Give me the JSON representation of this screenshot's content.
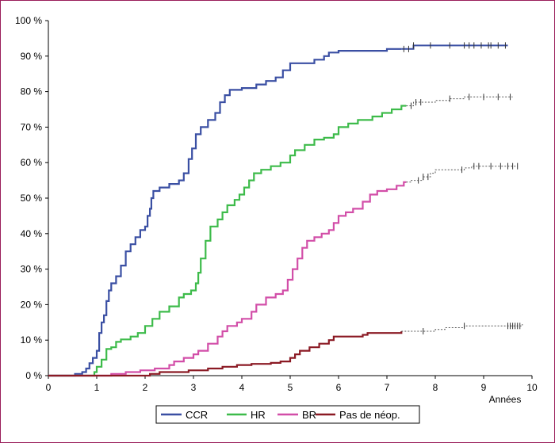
{
  "chart_data": {
    "type": "line",
    "title": "",
    "xlabel": "Années",
    "ylabel": "",
    "xlim": [
      0,
      10
    ],
    "ylim": [
      0,
      100
    ],
    "x_ticks": [
      0,
      1,
      2,
      3,
      4,
      5,
      6,
      7,
      8,
      9,
      10
    ],
    "y_ticks": [
      0,
      10,
      20,
      30,
      40,
      50,
      60,
      70,
      80,
      90,
      100
    ],
    "y_tick_labels": [
      "0 %",
      "10 %",
      "20 %",
      "30 %",
      "40 %",
      "50 %",
      "60 %",
      "70 %",
      "80 %",
      "90 %",
      "100 %"
    ],
    "grid": false,
    "legend_position": "bottom",
    "series": [
      {
        "name": "CCR",
        "color": "#3a4fa3",
        "points": [
          [
            0,
            0
          ],
          [
            0.5,
            0
          ],
          [
            0.55,
            0.5
          ],
          [
            0.7,
            1
          ],
          [
            0.78,
            2
          ],
          [
            0.85,
            3.5
          ],
          [
            0.92,
            5
          ],
          [
            1.0,
            7
          ],
          [
            1.05,
            12
          ],
          [
            1.1,
            15
          ],
          [
            1.15,
            17
          ],
          [
            1.2,
            21
          ],
          [
            1.25,
            24
          ],
          [
            1.3,
            26
          ],
          [
            1.4,
            28
          ],
          [
            1.5,
            31
          ],
          [
            1.6,
            35
          ],
          [
            1.7,
            37
          ],
          [
            1.8,
            39
          ],
          [
            1.9,
            41
          ],
          [
            2.0,
            42
          ],
          [
            2.05,
            45
          ],
          [
            2.1,
            47
          ],
          [
            2.13,
            50
          ],
          [
            2.17,
            52
          ],
          [
            2.3,
            53
          ],
          [
            2.5,
            54
          ],
          [
            2.7,
            55
          ],
          [
            2.8,
            57
          ],
          [
            2.9,
            61
          ],
          [
            2.97,
            64
          ],
          [
            3.05,
            68
          ],
          [
            3.15,
            70
          ],
          [
            3.3,
            72
          ],
          [
            3.45,
            74
          ],
          [
            3.55,
            77
          ],
          [
            3.65,
            79
          ],
          [
            3.75,
            80.5
          ],
          [
            4.0,
            81
          ],
          [
            4.3,
            82
          ],
          [
            4.5,
            83
          ],
          [
            4.7,
            84
          ],
          [
            4.85,
            86
          ],
          [
            5.0,
            88
          ],
          [
            5.4,
            88
          ],
          [
            5.5,
            89
          ],
          [
            5.7,
            90
          ],
          [
            5.8,
            91
          ],
          [
            6.0,
            91.5
          ],
          [
            7.0,
            92
          ],
          [
            7.5,
            92
          ],
          [
            7.55,
            93
          ],
          [
            9.5,
            93
          ]
        ],
        "dashed_from": 7.3,
        "censor_x": [
          7.35,
          7.45,
          7.55,
          7.9,
          8.3,
          8.6,
          8.7,
          8.8,
          8.95,
          9.1,
          9.15,
          9.3,
          9.45
        ]
      },
      {
        "name": "HR",
        "color": "#3dbb4a",
        "points": [
          [
            0,
            0
          ],
          [
            0.85,
            0
          ],
          [
            0.95,
            1
          ],
          [
            1.0,
            2.5
          ],
          [
            1.1,
            4.5
          ],
          [
            1.2,
            7.5
          ],
          [
            1.3,
            8
          ],
          [
            1.4,
            9.5
          ],
          [
            1.5,
            10.2
          ],
          [
            1.7,
            11
          ],
          [
            1.85,
            12
          ],
          [
            2.0,
            14
          ],
          [
            2.15,
            16
          ],
          [
            2.3,
            18
          ],
          [
            2.5,
            19.5
          ],
          [
            2.7,
            22
          ],
          [
            2.8,
            23
          ],
          [
            2.95,
            24
          ],
          [
            3.05,
            26
          ],
          [
            3.1,
            29
          ],
          [
            3.15,
            33
          ],
          [
            3.25,
            38
          ],
          [
            3.35,
            42
          ],
          [
            3.5,
            44
          ],
          [
            3.6,
            46
          ],
          [
            3.7,
            48
          ],
          [
            3.85,
            49.5
          ],
          [
            3.95,
            51
          ],
          [
            4.05,
            53
          ],
          [
            4.15,
            55
          ],
          [
            4.25,
            57
          ],
          [
            4.4,
            58
          ],
          [
            4.6,
            59
          ],
          [
            4.8,
            60
          ],
          [
            5.0,
            62
          ],
          [
            5.1,
            63.5
          ],
          [
            5.3,
            65
          ],
          [
            5.5,
            66.5
          ],
          [
            5.7,
            67
          ],
          [
            5.9,
            68
          ],
          [
            6.0,
            70
          ],
          [
            6.2,
            71
          ],
          [
            6.4,
            72
          ],
          [
            6.7,
            73
          ],
          [
            6.9,
            74
          ],
          [
            7.1,
            75
          ],
          [
            7.3,
            76
          ],
          [
            7.55,
            77
          ],
          [
            8.0,
            77.5
          ],
          [
            8.3,
            78
          ],
          [
            8.6,
            78.5
          ],
          [
            9.6,
            78.5
          ]
        ],
        "dashed_from": 7.4,
        "censor_x": [
          7.5,
          7.6,
          7.7,
          8.3,
          8.7,
          9.0,
          9.3,
          9.55
        ]
      },
      {
        "name": "BR",
        "color": "#d24ea8",
        "points": [
          [
            0,
            0
          ],
          [
            1.2,
            0
          ],
          [
            1.3,
            0.5
          ],
          [
            1.6,
            1
          ],
          [
            1.9,
            1.5
          ],
          [
            2.2,
            2
          ],
          [
            2.5,
            3
          ],
          [
            2.6,
            4
          ],
          [
            2.8,
            5
          ],
          [
            3.0,
            6
          ],
          [
            3.1,
            7
          ],
          [
            3.3,
            9
          ],
          [
            3.5,
            11
          ],
          [
            3.6,
            12.5
          ],
          [
            3.7,
            14
          ],
          [
            3.9,
            15
          ],
          [
            4.0,
            16
          ],
          [
            4.2,
            18
          ],
          [
            4.3,
            20
          ],
          [
            4.5,
            22
          ],
          [
            4.7,
            23
          ],
          [
            4.85,
            24
          ],
          [
            4.95,
            27
          ],
          [
            5.05,
            30
          ],
          [
            5.15,
            33
          ],
          [
            5.25,
            36
          ],
          [
            5.35,
            38
          ],
          [
            5.5,
            39
          ],
          [
            5.65,
            40
          ],
          [
            5.8,
            41
          ],
          [
            5.9,
            43
          ],
          [
            6.0,
            45
          ],
          [
            6.15,
            46
          ],
          [
            6.3,
            47
          ],
          [
            6.5,
            49
          ],
          [
            6.65,
            51
          ],
          [
            6.8,
            52
          ],
          [
            7.0,
            52.5
          ],
          [
            7.2,
            53.5
          ],
          [
            7.35,
            54.5
          ],
          [
            7.5,
            55
          ],
          [
            7.75,
            56
          ],
          [
            7.9,
            57
          ],
          [
            8.0,
            58
          ],
          [
            8.6,
            58.5
          ],
          [
            8.75,
            59
          ],
          [
            9.7,
            59
          ]
        ],
        "dashed_from": 7.4,
        "censor_x": [
          7.65,
          7.75,
          7.85,
          8.55,
          8.8,
          8.9,
          9.15,
          9.35,
          9.5,
          9.6,
          9.7
        ]
      },
      {
        "name": "Pas de néop.",
        "color": "#8b1a24",
        "points": [
          [
            0,
            0
          ],
          [
            0.6,
            0
          ],
          [
            2.1,
            0.5
          ],
          [
            2.3,
            1
          ],
          [
            2.9,
            1.5
          ],
          [
            3.3,
            2
          ],
          [
            3.6,
            2.5
          ],
          [
            3.9,
            3
          ],
          [
            4.2,
            3.3
          ],
          [
            4.6,
            3.6
          ],
          [
            4.8,
            4
          ],
          [
            5.0,
            5
          ],
          [
            5.1,
            6
          ],
          [
            5.2,
            7
          ],
          [
            5.4,
            8
          ],
          [
            5.6,
            9
          ],
          [
            5.8,
            10
          ],
          [
            5.9,
            11
          ],
          [
            6.5,
            11.5
          ],
          [
            6.6,
            12
          ],
          [
            7.3,
            12.5
          ],
          [
            7.5,
            12.5
          ],
          [
            8.0,
            13
          ],
          [
            8.2,
            13.5
          ],
          [
            8.6,
            14
          ],
          [
            9.8,
            14.5
          ]
        ],
        "dashed_from": 7.3,
        "censor_x": [
          7.75,
          8.6,
          9.5,
          9.55,
          9.6,
          9.65,
          9.7,
          9.75
        ]
      }
    ]
  }
}
